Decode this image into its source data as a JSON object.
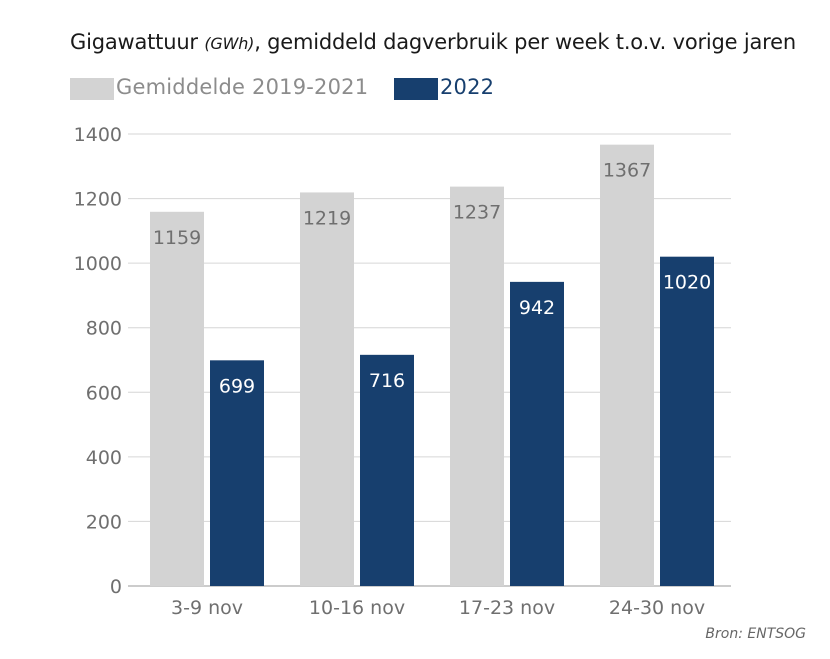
{
  "chart_data": {
    "type": "bar",
    "title_main": "Gigawattuur ",
    "title_unit": "(GWh)",
    "title_rest": ", gemiddeld dagverbruik per week t.o.v. vorige jaren",
    "categories": [
      "3-9 nov",
      "10-16 nov",
      "17-23 nov",
      "24-30 nov"
    ],
    "series": [
      {
        "name": "Gemiddelde 2019-2021",
        "values": [
          1159,
          1219,
          1237,
          1367
        ],
        "color": "#d3d3d3",
        "label_color": "#6f6f6f"
      },
      {
        "name": "2022",
        "values": [
          699,
          716,
          942,
          1020
        ],
        "color": "#173f6e",
        "label_color": "#ffffff"
      }
    ],
    "ylim": [
      0,
      1400
    ],
    "yticks": [
      0,
      200,
      400,
      600,
      800,
      1000,
      1200,
      1400
    ],
    "grid": true,
    "legend_position": "top-left",
    "source": "Bron: ENTSOG"
  }
}
